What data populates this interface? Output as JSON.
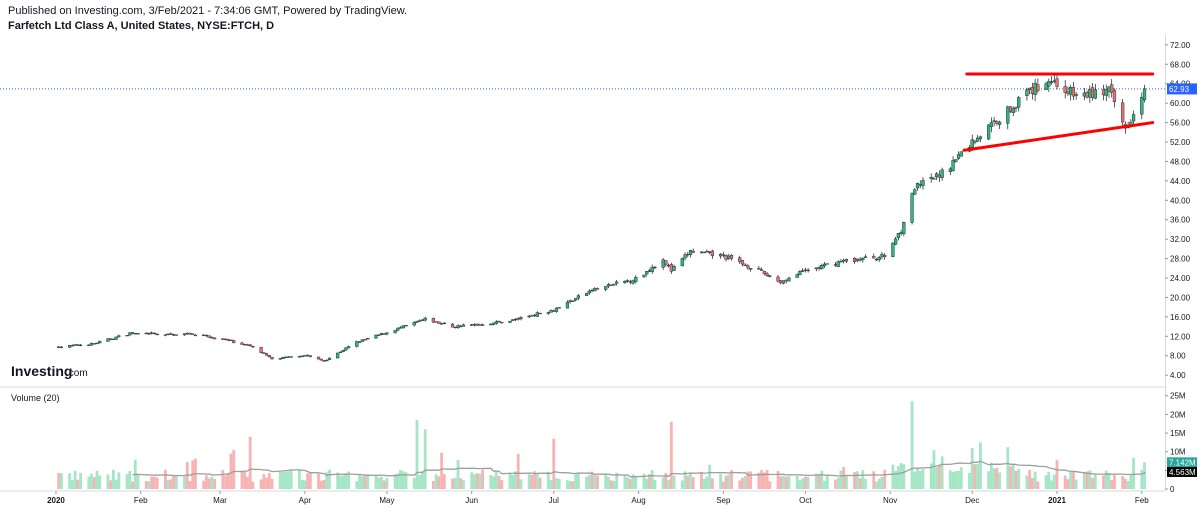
{
  "header": {
    "published": "Published on Investing.com, 3/Feb/2021 - 7:34:06 GMT, Powered by TradingView.",
    "symbol_title": "Farfetch Ltd Class A, United States, NYSE:FTCH, D"
  },
  "watermark": {
    "main": "Investing",
    "suffix": ".com"
  },
  "colors": {
    "up": "#26a69a",
    "down": "#ef5350",
    "up_fill": "#2fb67a",
    "down_fill": "#e57373",
    "vol_up": "#a5e6c6",
    "vol_down": "#f7b4b4",
    "trend": "#ff0000",
    "price_line": "#2962ff",
    "ma": "#9e9e9e"
  },
  "chart_data": {
    "type": "candlestick",
    "title": "Farfetch Ltd Class A, United States, NYSE:FTCH, D",
    "price_axis": {
      "ticks": [
        "72.00",
        "68.00",
        "64.00",
        "60.00",
        "56.00",
        "52.00",
        "48.00",
        "44.00",
        "40.00",
        "36.00",
        "32.00",
        "28.00",
        "24.00",
        "20.00",
        "16.00",
        "12.00",
        "8.00",
        "4.00"
      ],
      "ylim": [
        3,
        73
      ]
    },
    "last_price": {
      "value": 62.93,
      "label": "62.93"
    },
    "x_labels": [
      "2020",
      "Feb",
      "Mar",
      "Apr",
      "May",
      "Jun",
      "Jul",
      "Aug",
      "Sep",
      "Oct",
      "Nov",
      "Dec",
      "2021",
      "Feb"
    ],
    "price_path": [
      [
        "2020-01-02",
        9.8
      ],
      [
        "2020-01-15",
        10.5
      ],
      [
        "2020-01-28",
        12.6
      ],
      [
        "2020-02-10",
        12.3
      ],
      [
        "2020-02-20",
        12.5
      ],
      [
        "2020-03-05",
        11.0
      ],
      [
        "2020-03-12",
        10.0
      ],
      [
        "2020-03-20",
        7.3
      ],
      [
        "2020-04-01",
        8.1
      ],
      [
        "2020-04-08",
        6.9
      ],
      [
        "2020-04-20",
        10.8
      ],
      [
        "2020-05-01",
        12.8
      ],
      [
        "2020-05-15",
        15.5
      ],
      [
        "2020-05-25",
        14.0
      ],
      [
        "2020-06-05",
        14.5
      ],
      [
        "2020-06-15",
        15.2
      ],
      [
        "2020-07-01",
        17.5
      ],
      [
        "2020-07-15",
        21.5
      ],
      [
        "2020-08-01",
        24.0
      ],
      [
        "2020-08-10",
        28.0
      ],
      [
        "2020-08-13",
        25.5
      ],
      [
        "2020-08-20",
        29.5
      ],
      [
        "2020-09-01",
        28.5
      ],
      [
        "2020-09-10",
        26.5
      ],
      [
        "2020-09-22",
        23.2
      ],
      [
        "2020-10-01",
        25.5
      ],
      [
        "2020-10-15",
        27.5
      ],
      [
        "2020-10-30",
        28.5
      ],
      [
        "2020-11-05",
        34.0
      ],
      [
        "2020-11-10",
        42.5
      ],
      [
        "2020-11-20",
        45.5
      ],
      [
        "2020-11-30",
        51.5
      ],
      [
        "2020-12-10",
        56.5
      ],
      [
        "2020-12-20",
        61.5
      ],
      [
        "2020-12-29",
        65.0
      ],
      [
        "2021-01-08",
        61.5
      ],
      [
        "2021-01-20",
        62.5
      ],
      [
        "2021-01-26",
        54.8
      ],
      [
        "2021-02-02",
        62.93
      ]
    ],
    "volume_panel": {
      "title": "Volume (20)",
      "axis_ticks": [
        "25M",
        "20M",
        "15M",
        "10M",
        "5M",
        "0"
      ],
      "ylim": [
        0,
        26
      ],
      "current_volume": {
        "value": 7.142,
        "label": "7.142M"
      },
      "ma_volume": {
        "value": 4.563,
        "label": "4.563M"
      },
      "peaks": [
        [
          "2020-03-12",
          14.0
        ],
        [
          "2020-05-12",
          18.5
        ],
        [
          "2020-05-15",
          16.0
        ],
        [
          "2020-07-01",
          13.5
        ],
        [
          "2020-08-13",
          18.0
        ],
        [
          "2020-11-09",
          23.5
        ],
        [
          "2020-12-01",
          11.0
        ],
        [
          "2020-12-04",
          12.5
        ]
      ]
    },
    "trendlines": [
      {
        "from": [
          "2020-11-29",
          66.0
        ],
        "to": [
          "2021-02-05",
          66.0
        ]
      },
      {
        "from": [
          "2020-11-28",
          50.3
        ],
        "to": [
          "2021-02-05",
          56.0
        ]
      }
    ]
  }
}
